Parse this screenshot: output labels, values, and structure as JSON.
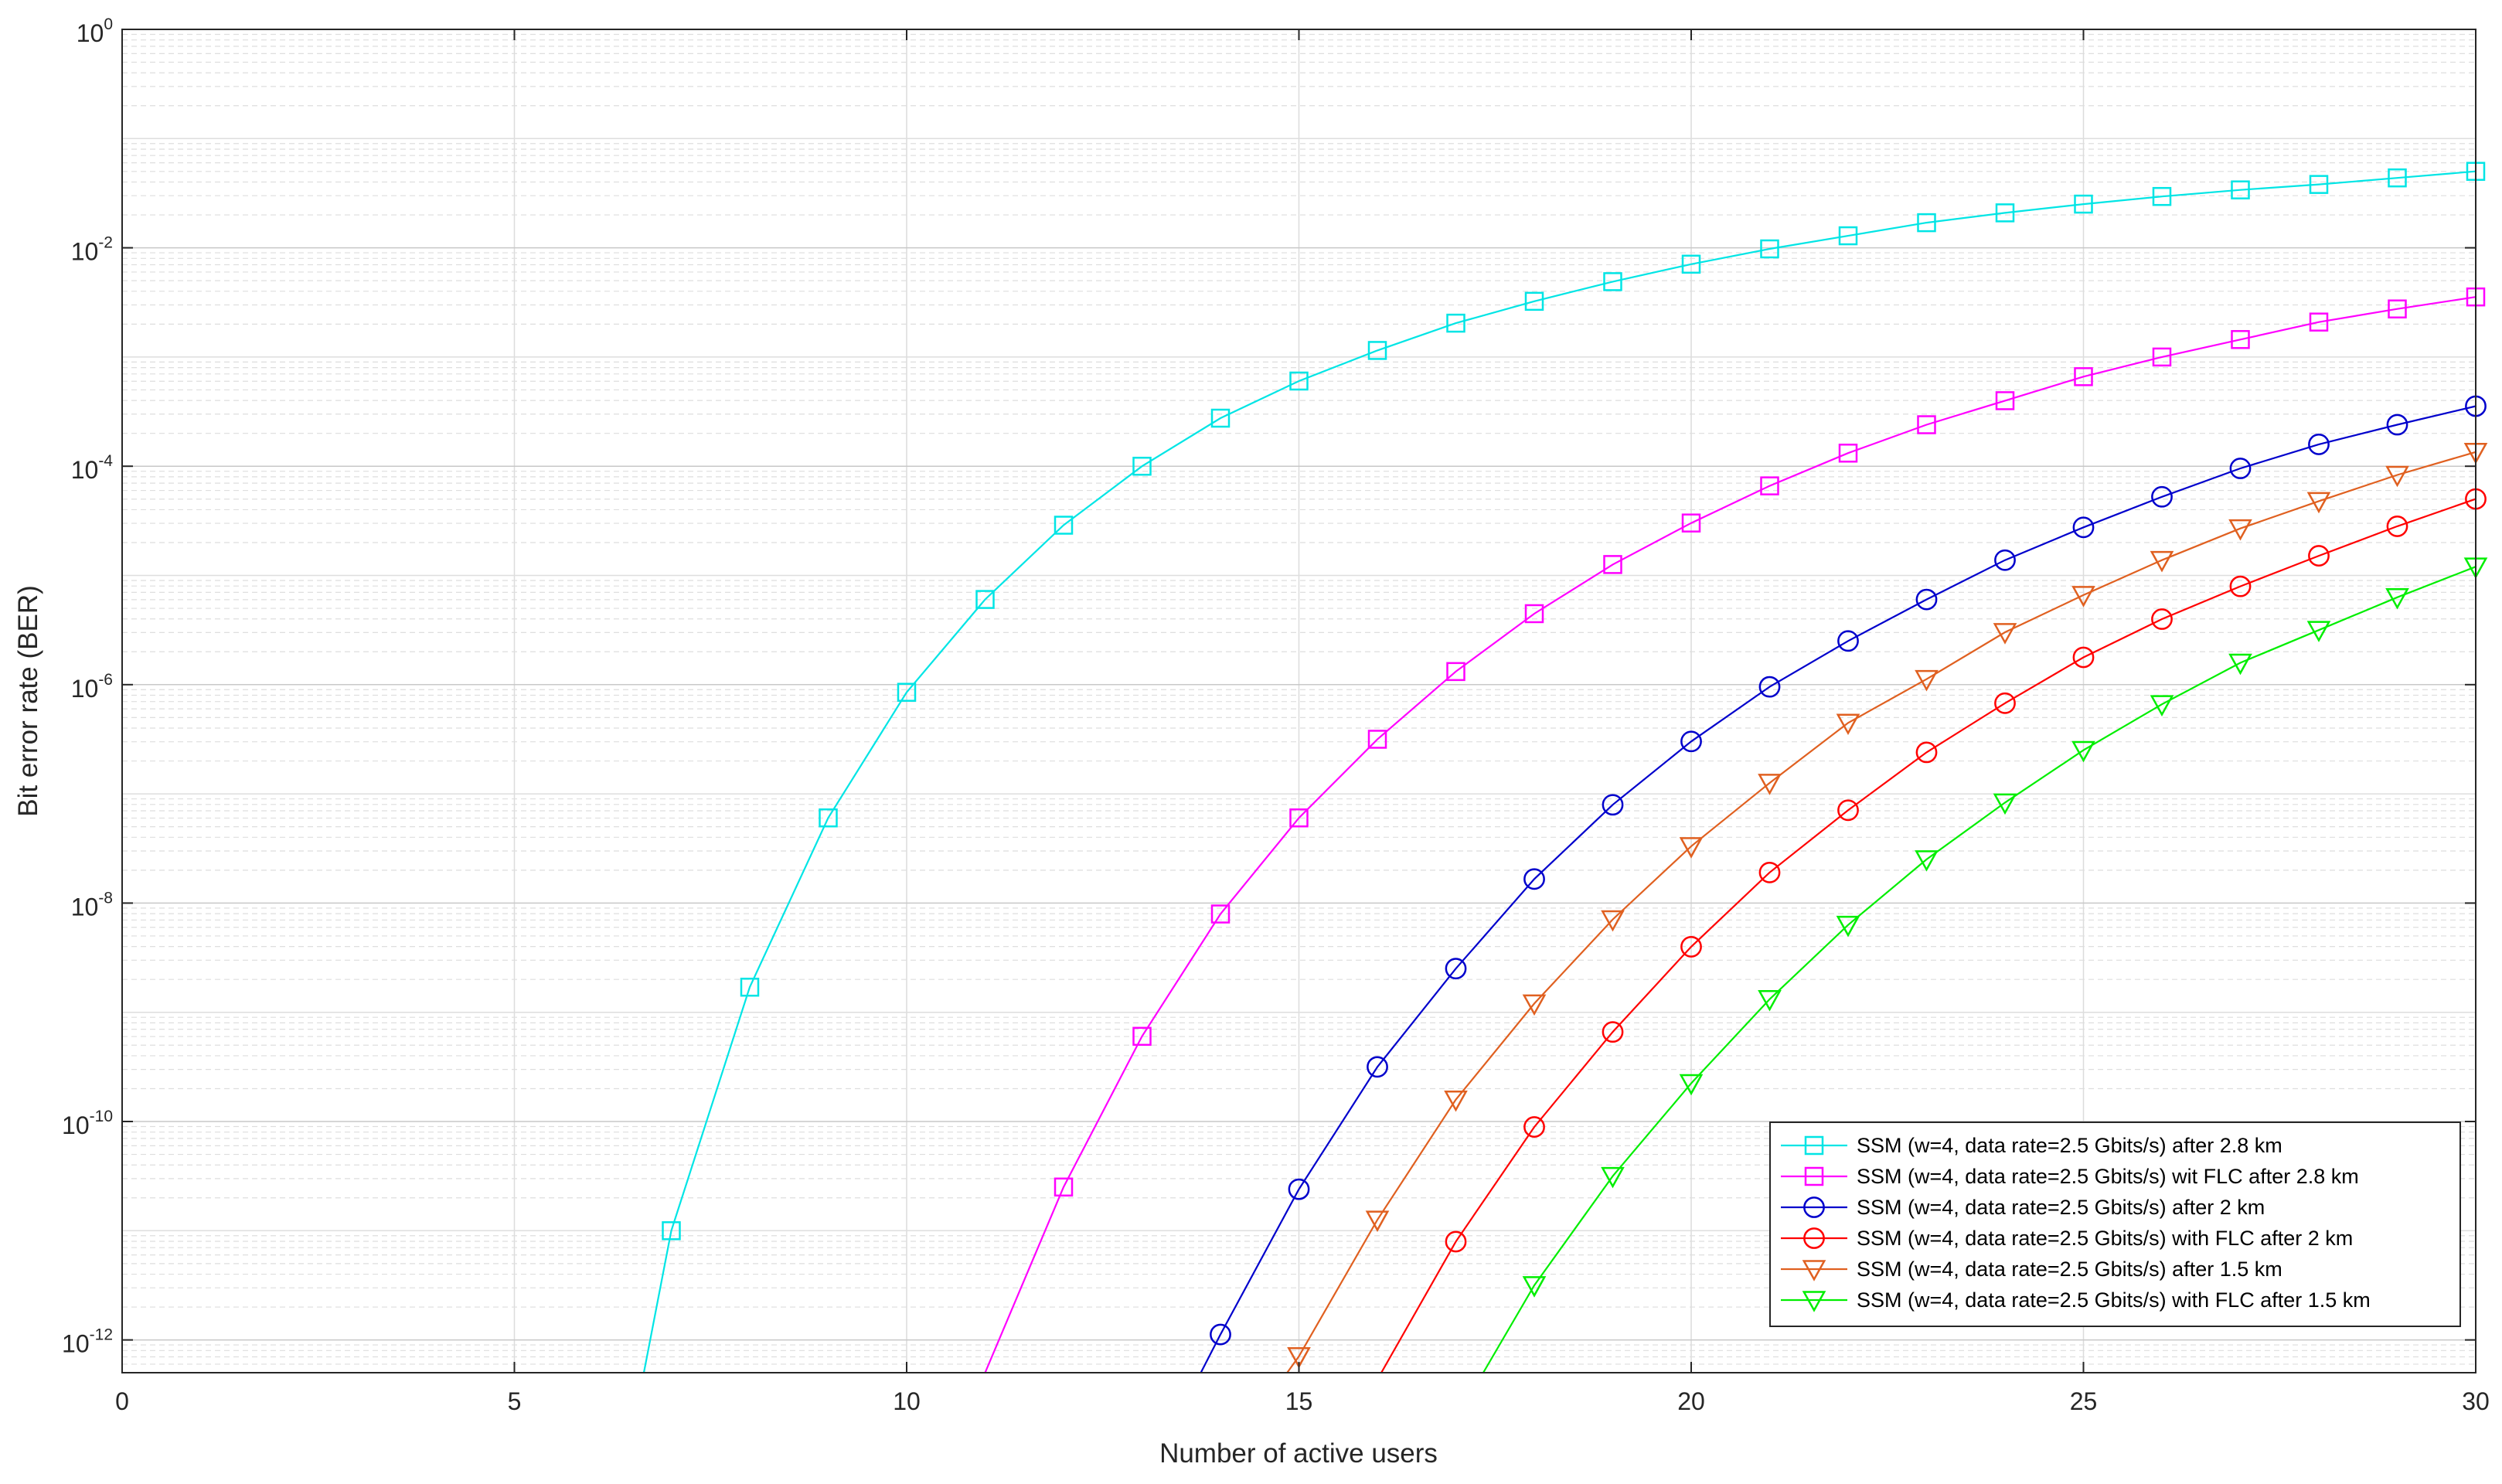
{
  "chart_data": {
    "type": "line",
    "title": "",
    "xlabel": "Number of active users",
    "ylabel": "Bit error rate (BER)",
    "xlim": [
      0,
      30
    ],
    "ylim_log10": [
      -12.3,
      0
    ],
    "yscale": "log",
    "grid": true,
    "legend_position": "bottom-right",
    "x_ticks": [
      "0",
      "5",
      "10",
      "15",
      "20",
      "25",
      "30"
    ],
    "y_ticks": [
      {
        "base": "10",
        "exp": "0",
        "log": 0
      },
      {
        "base": "10",
        "exp": "-2",
        "log": -2
      },
      {
        "base": "10",
        "exp": "-4",
        "log": -4
      },
      {
        "base": "10",
        "exp": "-6",
        "log": -6
      },
      {
        "base": "10",
        "exp": "-8",
        "log": -8
      },
      {
        "base": "10",
        "exp": "-10",
        "log": -10
      },
      {
        "base": "10",
        "exp": "-12",
        "log": -12
      }
    ],
    "series": [
      {
        "name": "SSM (w=4, data rate=2.5 Gbits/s) after 2.8 km",
        "color": "#00e5e5",
        "marker": "square",
        "x": [
          7,
          8,
          9,
          10,
          11,
          12,
          13,
          14,
          15,
          16,
          17,
          18,
          19,
          20,
          21,
          22,
          23,
          24,
          25,
          26,
          27,
          28,
          29,
          30
        ],
        "log10_y": [
          -11.0,
          -8.77,
          -7.22,
          -6.07,
          -5.22,
          -4.54,
          -4.0,
          -3.56,
          -3.22,
          -2.94,
          -2.69,
          -2.49,
          -2.31,
          -2.15,
          -2.01,
          -1.89,
          -1.77,
          -1.68,
          -1.6,
          -1.53,
          -1.47,
          -1.42,
          -1.36,
          -1.3
        ]
      },
      {
        "name": "SSM (w=4, data rate=2.5 Gbits/s) wit FLC after 2.8 km",
        "color": "#ff00ff",
        "marker": "square",
        "x": [
          12,
          13,
          14,
          15,
          16,
          17,
          18,
          19,
          20,
          21,
          22,
          23,
          24,
          25,
          26,
          27,
          28,
          29,
          30
        ],
        "log10_y": [
          -10.6,
          -9.22,
          -8.1,
          -7.22,
          -6.5,
          -5.88,
          -5.35,
          -4.9,
          -4.52,
          -4.18,
          -3.88,
          -3.62,
          -3.4,
          -3.18,
          -3.0,
          -2.84,
          -2.68,
          -2.56,
          -2.45
        ]
      },
      {
        "name": "SSM (w=4, data rate=2.5 Gbits/s) after 2 km",
        "color": "#0000cc",
        "marker": "circle",
        "x": [
          14,
          15,
          16,
          17,
          18,
          19,
          20,
          21,
          22,
          23,
          24,
          25,
          26,
          27,
          28,
          29,
          30
        ],
        "log10_y": [
          -11.95,
          -10.62,
          -9.5,
          -8.6,
          -7.78,
          -7.1,
          -6.52,
          -6.02,
          -5.6,
          -5.22,
          -4.86,
          -4.56,
          -4.28,
          -4.02,
          -3.8,
          -3.62,
          -3.45
        ]
      },
      {
        "name": "SSM (w=4, data rate=2.5 Gbits/s) with FLC after 2 km",
        "color": "#ff0000",
        "marker": "circle",
        "x": [
          17,
          18,
          19,
          20,
          21,
          22,
          23,
          24,
          25,
          26,
          27,
          28,
          29,
          30
        ],
        "log10_y": [
          -11.1,
          -10.05,
          -9.18,
          -8.4,
          -7.72,
          -7.15,
          -6.62,
          -6.17,
          -5.75,
          -5.4,
          -5.1,
          -4.82,
          -4.55,
          -4.3
        ]
      },
      {
        "name": "SSM (w=4, data rate=2.5 Gbits/s) after 1.5 km",
        "color": "#e06020",
        "marker": "triangle-down",
        "x": [
          15,
          16,
          17,
          18,
          19,
          20,
          21,
          22,
          23,
          24,
          25,
          26,
          27,
          28,
          29,
          30
        ],
        "log10_y": [
          -12.15,
          -10.9,
          -9.8,
          -8.92,
          -8.15,
          -7.48,
          -6.9,
          -6.35,
          -5.95,
          -5.52,
          -5.18,
          -4.86,
          -4.57,
          -4.32,
          -4.08,
          -3.87
        ]
      },
      {
        "name": "SSM (w=4, data rate=2.5 Gbits/s) with FLC after 1.5 km",
        "color": "#00ee00",
        "marker": "triangle-down",
        "x": [
          18,
          19,
          20,
          21,
          22,
          23,
          24,
          25,
          26,
          27,
          28,
          29,
          30
        ],
        "log10_y": [
          -11.5,
          -10.5,
          -9.65,
          -8.88,
          -8.2,
          -7.6,
          -7.08,
          -6.6,
          -6.18,
          -5.8,
          -5.5,
          -5.2,
          -4.92
        ]
      }
    ],
    "leading_lines": [
      {
        "series": 0,
        "from": [
          6.65,
          -12.3
        ]
      },
      {
        "series": 1,
        "from": [
          11.0,
          -12.3
        ]
      },
      {
        "series": 2,
        "from": [
          13.75,
          -12.3
        ]
      },
      {
        "series": 3,
        "from": [
          16.05,
          -12.3
        ]
      },
      {
        "series": 4,
        "from": [
          14.85,
          -12.3
        ]
      },
      {
        "series": 5,
        "from": [
          17.35,
          -12.3
        ]
      }
    ]
  }
}
